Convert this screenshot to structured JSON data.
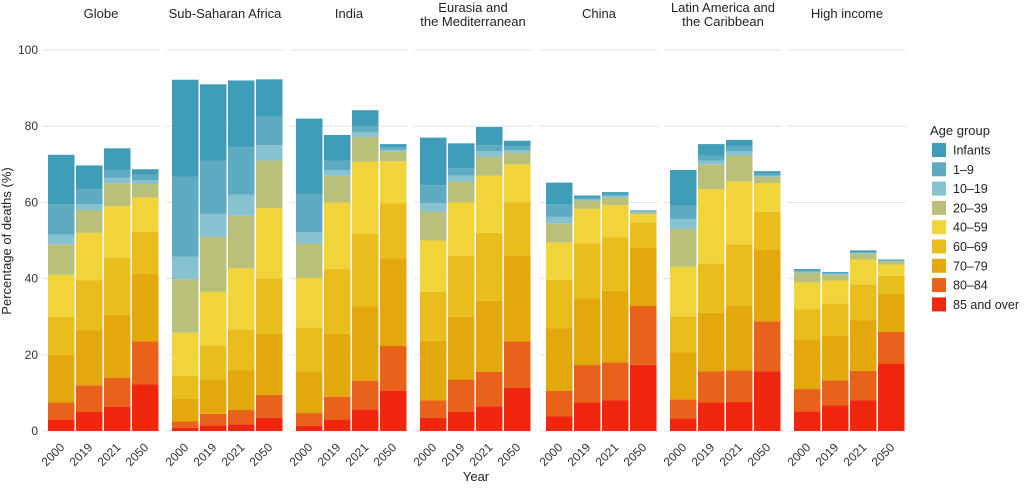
{
  "chart_data": {
    "type": "bar",
    "stacked": true,
    "ylabel": "Percentage of deaths (%)",
    "xlabel": "Year",
    "ylim": [
      0,
      100
    ],
    "yticks": [
      0,
      20,
      40,
      60,
      80,
      100
    ],
    "years": [
      "2000",
      "2019",
      "2021",
      "2050"
    ],
    "grid": true,
    "legend": {
      "title": "Age group",
      "placement": "right",
      "order": [
        "Infants",
        "1–9",
        "10–19",
        "20–39",
        "40–59",
        "60–69",
        "70–79",
        "80–84",
        "85 and over"
      ]
    },
    "colors": {
      "85 and over": "#f0270f",
      "80–84": "#e8621a",
      "70–79": "#e3a80c",
      "60–69": "#e9bd1c",
      "40–59": "#f0d43a",
      "20–39": "#b8c07a",
      "10–19": "#86c2d0",
      "1–9": "#5eaac0",
      "Infants": "#3f9db7"
    },
    "stack_order": [
      "85 and over",
      "80–84",
      "70–79",
      "60–69",
      "40–59",
      "20–39",
      "10–19",
      "1–9",
      "Infants"
    ],
    "panels": [
      {
        "title": "Globe",
        "bars": {
          "2000": {
            "85 and over": 3,
            "80–84": 4.5,
            "70–79": 12.5,
            "60–69": 10,
            "40–59": 11,
            "20–39": 8,
            "10–19": 2.5,
            "1–9": 8,
            "Infants": 13
          },
          "2019": {
            "85 and over": 5,
            "80–84": 7,
            "70–79": 14.5,
            "60–69": 13,
            "40–59": 12.5,
            "20–39": 6,
            "10–19": 1.5,
            "1–9": 4,
            "Infants": 6.2
          },
          "2021": {
            "85 and over": 6.3,
            "80–84": 7.7,
            "70–79": 16.5,
            "60–69": 15,
            "40–59": 13.5,
            "20–39": 6,
            "10–19": 1.5,
            "1–9": 2,
            "Infants": 5.7
          },
          "2050": {
            "85 and over": 12.3,
            "80–84": 11.2,
            "70–79": 17.8,
            "60–69": 11,
            "40–59": 9,
            "20–39": 3.5,
            "10–19": 1,
            "1–9": 1.5,
            "Infants": 1.4
          }
        }
      },
      {
        "title": "Sub-Saharan Africa",
        "bars": {
          "2000": {
            "85 and over": 0.8,
            "80–84": 1.7,
            "70–79": 6,
            "60–69": 6,
            "40–59": 11.3,
            "20–39": 14,
            "10–19": 6,
            "1–9": 21,
            "Infants": 25.4
          },
          "2019": {
            "85 and over": 1.5,
            "80–84": 3,
            "70–79": 9,
            "60–69": 9,
            "40–59": 14,
            "20–39": 14.5,
            "10–19": 6,
            "1–9": 14,
            "Infants": 20
          },
          "2021": {
            "85 and over": 1.8,
            "80–84": 3.7,
            "70–79": 10.5,
            "60–69": 10.7,
            "40–59": 16,
            "20–39": 13.8,
            "10–19": 5.5,
            "1–9": 12.5,
            "Infants": 17.5
          },
          "2050": {
            "85 and over": 3.5,
            "80–84": 6,
            "70–79": 16,
            "60–69": 14.5,
            "40–59": 18.5,
            "20–39": 12.5,
            "10–19": 4,
            "1–9": 7.5,
            "Infants": 9.8
          }
        }
      },
      {
        "title": "India",
        "bars": {
          "2000": {
            "85 and over": 1.4,
            "80–84": 3.3,
            "70–79": 11,
            "60–69": 11.5,
            "40–59": 13,
            "20–39": 9,
            "10–19": 3,
            "1–9": 10,
            "Infants": 19.8
          },
          "2019": {
            "85 and over": 3,
            "80–84": 6,
            "70–79": 16.5,
            "60–69": 17,
            "40–59": 17.5,
            "20–39": 7,
            "10–19": 1.5,
            "1–9": 2.5,
            "Infants": 6.7
          },
          "2021": {
            "85 and over": 5.7,
            "80–84": 7.5,
            "70–79": 19.5,
            "60–69": 19,
            "40–59": 19,
            "20–39": 6.5,
            "10–19": 1.3,
            "1–9": 1.5,
            "Infants": 4.2
          },
          "2050": {
            "85 and over": 10.5,
            "80–84": 11.8,
            "70–79": 23,
            "60–69": 14.5,
            "40–59": 11,
            "20–39": 2.5,
            "10–19": 0.5,
            "1–9": 0.7,
            "Infants": 0.8
          }
        }
      },
      {
        "title": "Eurasia and\nthe Mediterranean",
        "bars": {
          "2000": {
            "85 and over": 3.5,
            "80–84": 4.5,
            "70–79": 15.7,
            "60–69": 12.8,
            "40–59": 13.5,
            "20–39": 7.5,
            "10–19": 2.3,
            "1–9": 4.7,
            "Infants": 12.5
          },
          "2019": {
            "85 and over": 5,
            "80–84": 8.5,
            "70–79": 16.5,
            "60–69": 16,
            "40–59": 14,
            "20–39": 5.5,
            "10–19": 1.5,
            "1–9": 2,
            "Infants": 6.5
          },
          "2021": {
            "85 and over": 6.5,
            "80–84": 9,
            "70–79": 18.7,
            "60–69": 17.8,
            "40–59": 15,
            "20–39": 5,
            "10–19": 1.5,
            "1–9": 1.5,
            "Infants": 4.8
          },
          "2050": {
            "85 and over": 11.3,
            "80–84": 12.2,
            "70–79": 22.5,
            "60–69": 14,
            "40–59": 10,
            "20–39": 3,
            "10–19": 0.7,
            "1–9": 1,
            "Infants": 1.5
          }
        }
      },
      {
        "title": "China",
        "bars": {
          "2000": {
            "85 and over": 3.8,
            "80–84": 6.7,
            "70–79": 16.5,
            "60–69": 12.7,
            "40–59": 9.8,
            "20–39": 5,
            "10–19": 1.7,
            "1–9": 3.3,
            "Infants": 5.7
          },
          "2019": {
            "85 and over": 7.5,
            "80–84": 9.8,
            "70–79": 17.5,
            "60–69": 14.5,
            "40–59": 9,
            "20–39": 2.2,
            "10–19": 0.3,
            "1–9": 0.4,
            "Infants": 0.6
          },
          "2021": {
            "85 and over": 8.1,
            "80–84": 9.9,
            "70–79": 18.8,
            "60–69": 14,
            "40–59": 8.5,
            "20–39": 2,
            "10–19": 0.4,
            "1–9": 0.4,
            "Infants": 0.6
          },
          "2050": {
            "85 and over": 17.4,
            "80–84": 15.4,
            "70–79": 15.4,
            "60–69": 6.5,
            "40–59": 2.2,
            "20–39": 0.5,
            "10–19": 0.1,
            "1–9": 0.2,
            "Infants": 0.2
          }
        }
      },
      {
        "title": "Latin America and\nthe Caribbean",
        "bars": {
          "2000": {
            "85 and over": 3.3,
            "80–84": 5,
            "70–79": 12.3,
            "60–69": 9.5,
            "40–59": 13,
            "20–39": 10,
            "10–19": 2.5,
            "1–9": 3.5,
            "Infants": 9.4
          },
          "2019": {
            "85 and over": 7.5,
            "80–84": 8.2,
            "70–79": 15.3,
            "60–69": 13,
            "40–59": 19.5,
            "20–39": 6.5,
            "10–19": 1,
            "1–9": 1.3,
            "Infants": 3
          },
          "2021": {
            "85 and over": 7.6,
            "80–84": 8.3,
            "70–79": 17.1,
            "60–69": 16,
            "40–59": 16.5,
            "20–39": 6.8,
            "10–19": 1.2,
            "1–9": 1.2,
            "Infants": 1.7
          },
          "2050": {
            "85 and over": 15.7,
            "80–84": 13.1,
            "70–79": 18.7,
            "60–69": 10,
            "40–59": 7.5,
            "20–39": 1.7,
            "10–19": 0.3,
            "1–9": 0.5,
            "Infants": 0.7
          }
        }
      },
      {
        "title": "High income",
        "bars": {
          "2000": {
            "85 and over": 5.2,
            "80–84": 5.8,
            "70–79": 13,
            "60–69": 8,
            "40–59": 7,
            "20–39": 2.5,
            "10–19": 0.3,
            "1–9": 0.3,
            "Infants": 0.4
          },
          "2019": {
            "85 and over": 6.7,
            "80–84": 6.6,
            "70–79": 11.7,
            "60–69": 8.5,
            "40–59": 6,
            "20–39": 1.5,
            "10–19": 0.2,
            "1–9": 0.2,
            "Infants": 0.3
          },
          "2021": {
            "85 and over": 8,
            "80–84": 7.8,
            "70–79": 13.2,
            "60–69": 9.5,
            "40–59": 6.5,
            "20–39": 1.5,
            "10–19": 0.2,
            "1–9": 0.2,
            "Infants": 0.5
          },
          "2050": {
            "85 and over": 17.7,
            "80–84": 8.3,
            "70–79": 10,
            "60–69": 4.7,
            "40–59": 3,
            "20–39": 0.8,
            "10–19": 0.1,
            "1–9": 0.1,
            "Infants": 0.3
          }
        }
      }
    ]
  }
}
